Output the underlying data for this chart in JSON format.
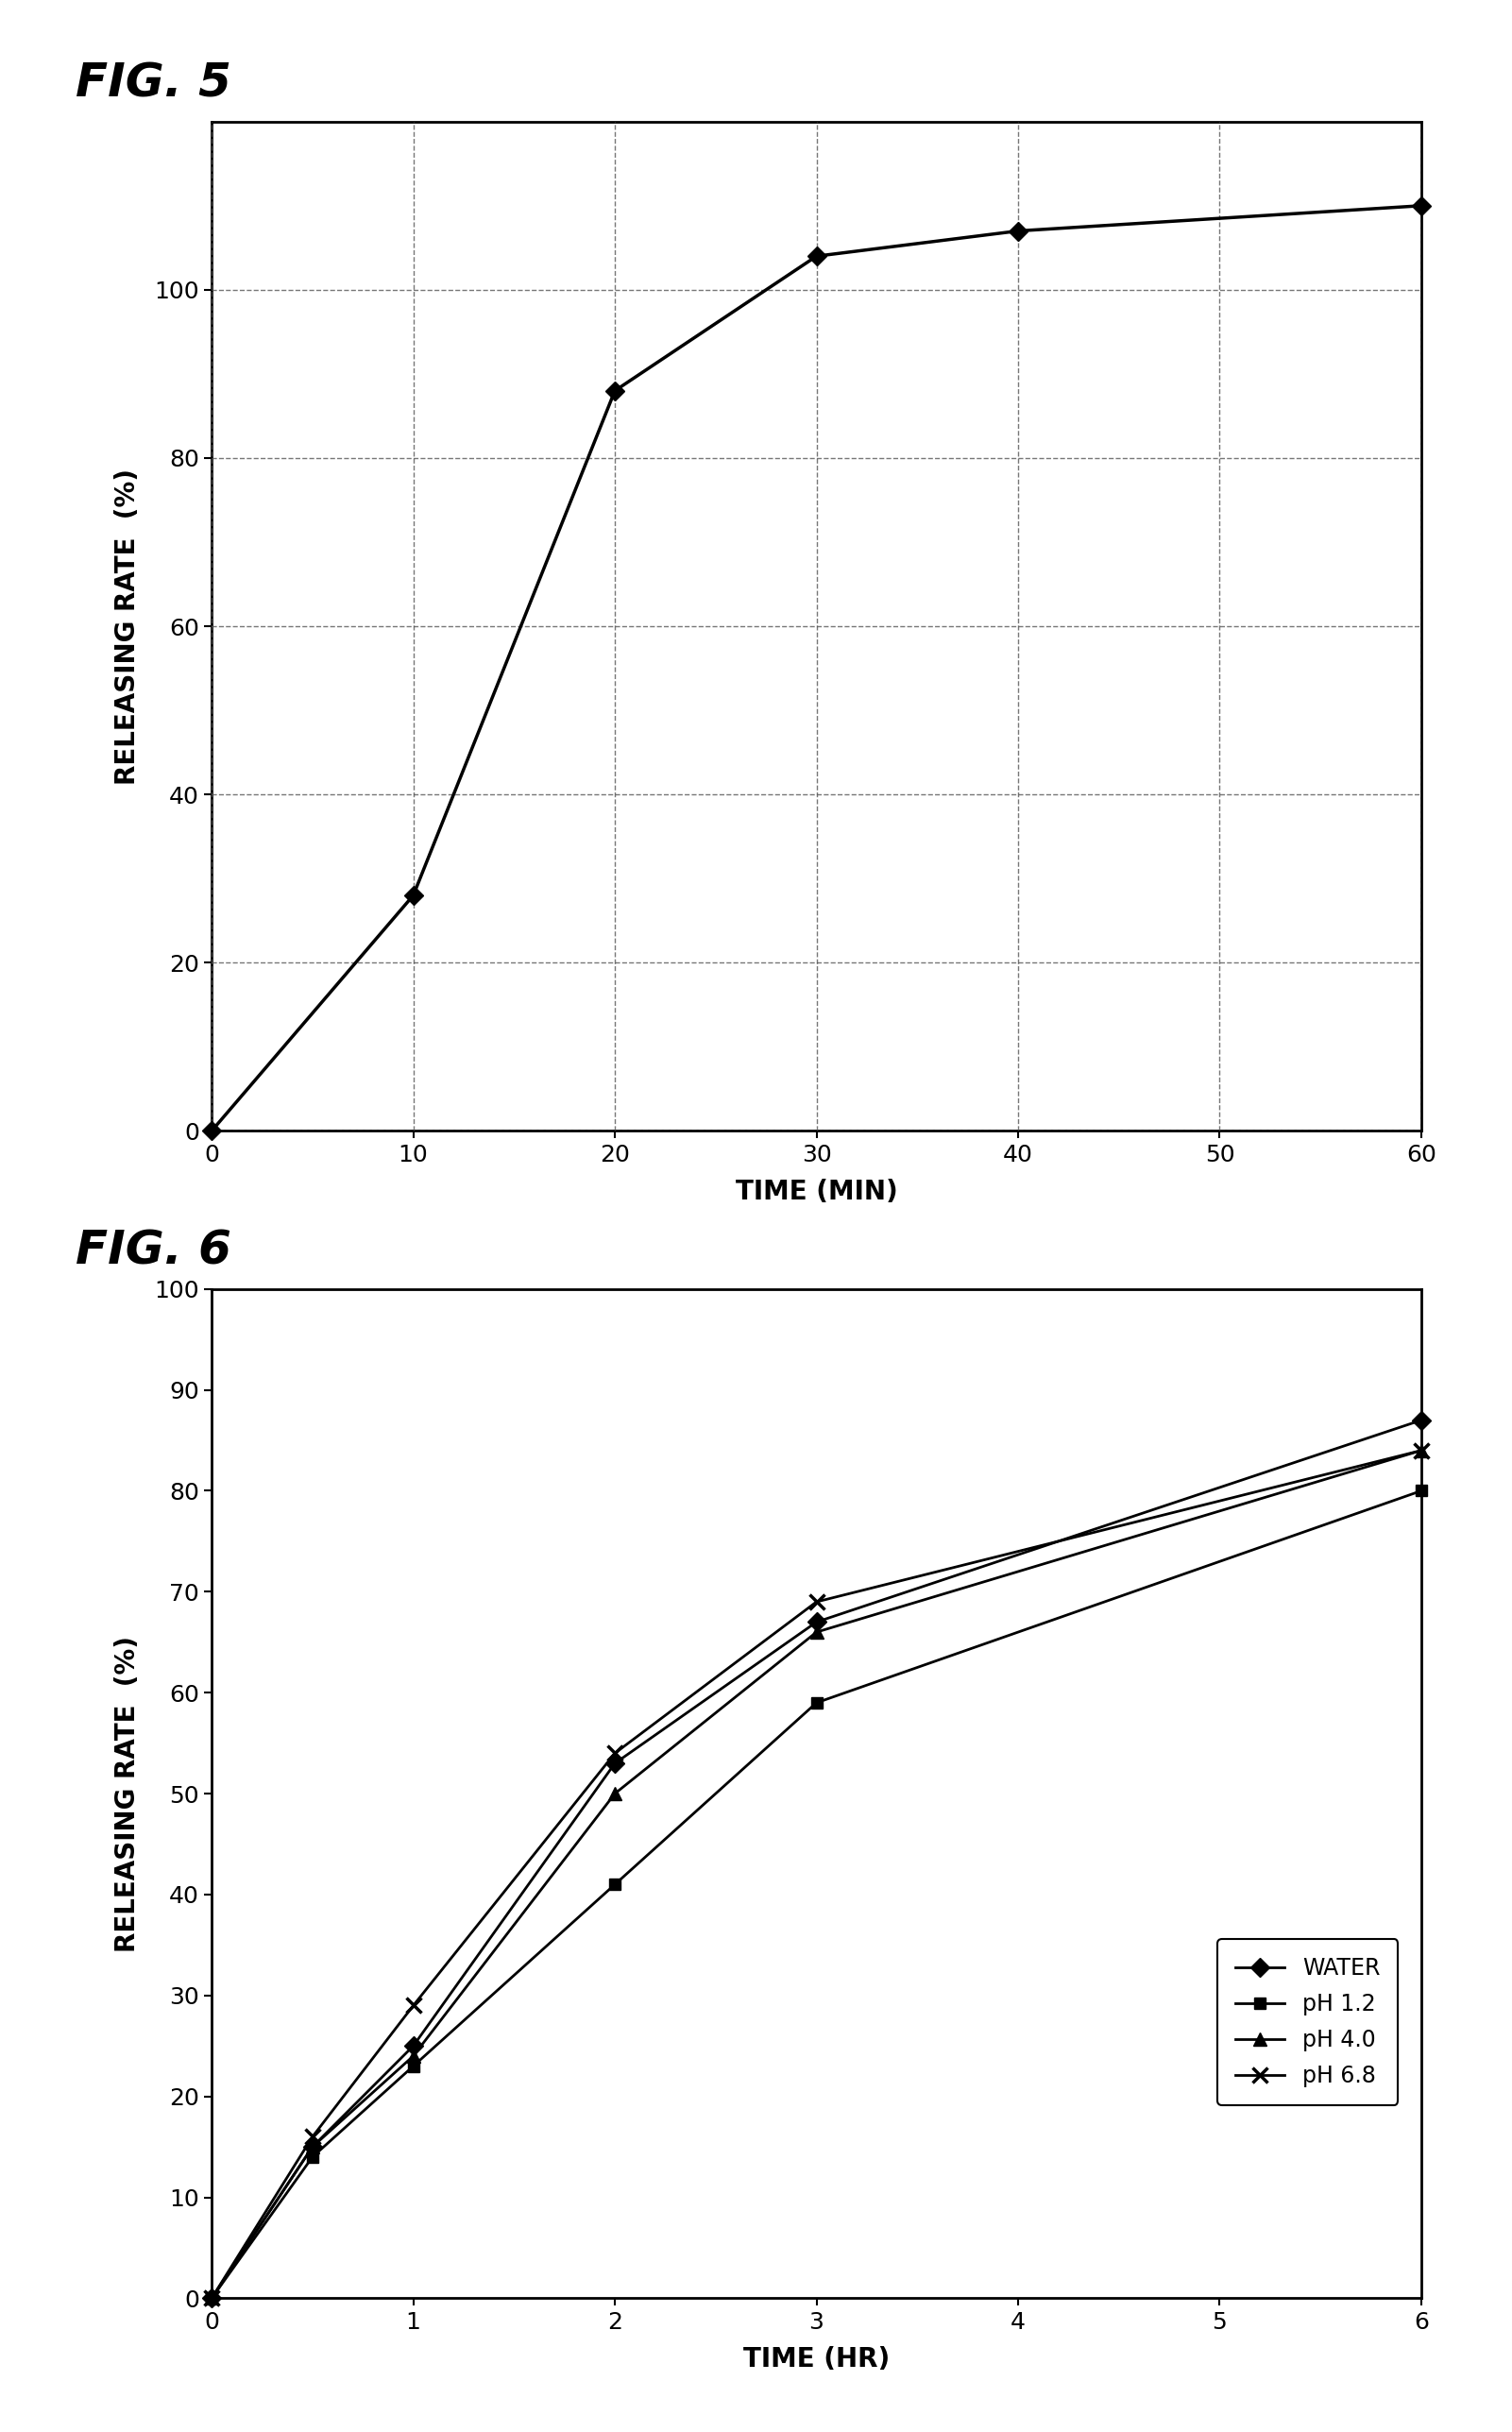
{
  "fig5": {
    "title": "FIG. 5",
    "x": [
      0,
      10,
      20,
      30,
      40,
      60
    ],
    "y": [
      0,
      28,
      88,
      104,
      107,
      110
    ],
    "xlabel": "TIME (MIN)",
    "ylabel": "RELEASING RATE  (%)",
    "xlim": [
      0,
      60
    ],
    "ylim": [
      0,
      120
    ],
    "xticks": [
      0,
      10,
      20,
      30,
      40,
      50,
      60
    ],
    "yticks": [
      0,
      20,
      40,
      60,
      80,
      100
    ],
    "color": "#000000",
    "marker": "D",
    "markersize": 10,
    "linewidth": 2.5
  },
  "fig6": {
    "title": "FIG. 6",
    "xlabel": "TIME (HR)",
    "ylabel": "RELEASING RATE  (%)",
    "xlim": [
      0,
      6
    ],
    "ylim": [
      0,
      100
    ],
    "xticks": [
      0,
      1,
      2,
      3,
      4,
      5,
      6
    ],
    "yticks": [
      0,
      10,
      20,
      30,
      40,
      50,
      60,
      70,
      80,
      90,
      100
    ],
    "series": [
      {
        "label": "WATER",
        "x": [
          0,
          0.5,
          1,
          2,
          3,
          6
        ],
        "y": [
          0,
          15,
          25,
          53,
          67,
          87
        ],
        "marker": "D",
        "color": "#000000",
        "linewidth": 2.0,
        "markersize": 10
      },
      {
        "label": "pH 1.2",
        "x": [
          0,
          0.5,
          1,
          2,
          3,
          6
        ],
        "y": [
          0,
          14,
          23,
          41,
          59,
          80
        ],
        "marker": "s",
        "color": "#000000",
        "linewidth": 2.0,
        "markersize": 9
      },
      {
        "label": "pH 4.0",
        "x": [
          0,
          0.5,
          1,
          2,
          3,
          6
        ],
        "y": [
          0,
          15,
          24,
          50,
          66,
          84
        ],
        "marker": "^",
        "color": "#000000",
        "linewidth": 2.0,
        "markersize": 10
      },
      {
        "label": "pH 6.8",
        "x": [
          0,
          0.5,
          1,
          2,
          3,
          6
        ],
        "y": [
          0,
          16,
          29,
          54,
          69,
          84
        ],
        "marker": "x",
        "color": "#000000",
        "linewidth": 2.0,
        "markersize": 11,
        "markeredgewidth": 2.5
      }
    ]
  },
  "background_color": "#ffffff",
  "text_color": "#000000",
  "grid_color": "#555555",
  "grid_linestyle": "--",
  "grid_alpha": 0.8,
  "title_fontsize": 36,
  "label_fontsize": 20,
  "tick_fontsize": 18,
  "legend_fontsize": 17
}
